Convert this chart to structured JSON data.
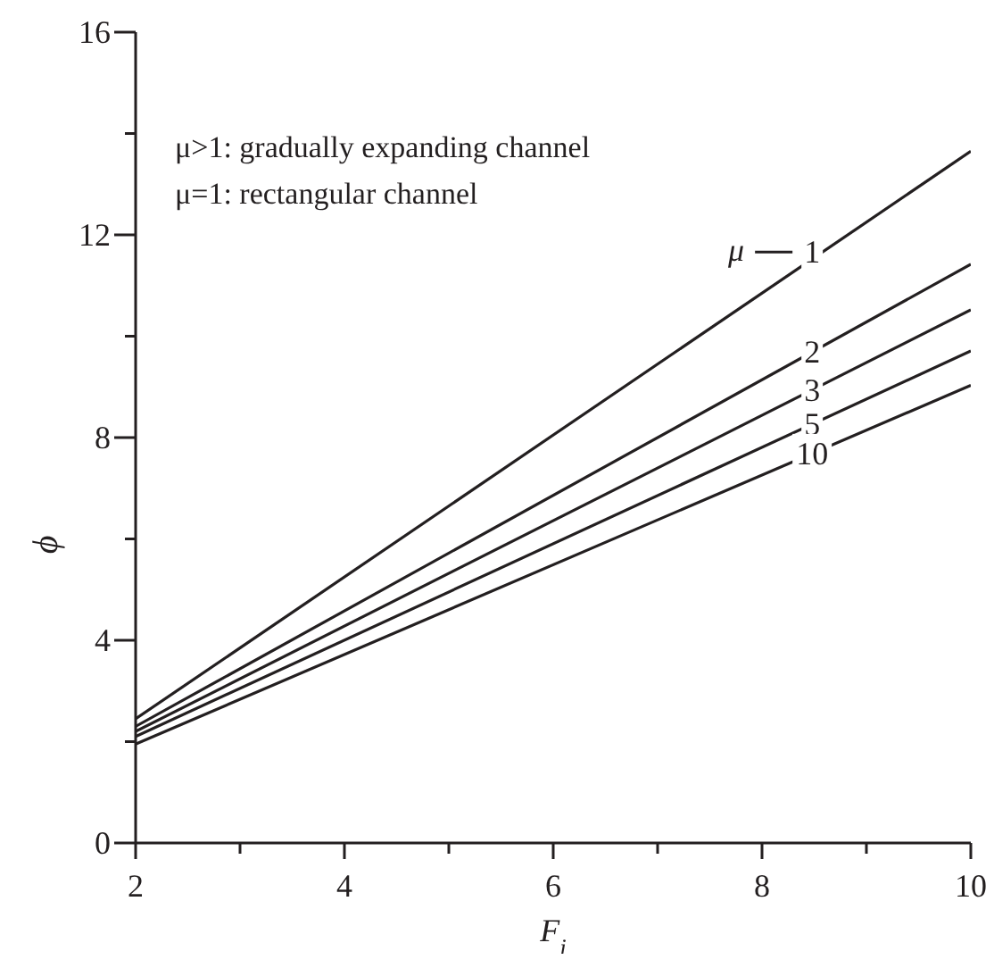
{
  "chart_data": {
    "type": "line",
    "xlabel": "F$_{i}$",
    "ylabel": "ϕ",
    "x": [
      2,
      10
    ],
    "series": [
      {
        "name": "1",
        "color": "#231f20",
        "values": [
          2.45,
          13.65
        ]
      },
      {
        "name": "2",
        "color": "#231f20",
        "values": [
          2.3,
          11.42
        ]
      },
      {
        "name": "3",
        "color": "#231f20",
        "values": [
          2.2,
          10.52
        ]
      },
      {
        "name": "5",
        "color": "#231f20",
        "values": [
          2.1,
          9.71
        ]
      },
      {
        "name": "10",
        "color": "#231f20",
        "values": [
          1.95,
          9.03
        ]
      }
    ],
    "annotations": [
      "μ>1: gradually expanding channel",
      "μ=1: rectangular channel",
      "μ"
    ],
    "xlim": [
      2,
      10
    ],
    "ylim": [
      0,
      16
    ],
    "xticks": [
      2,
      {
        "value": 3,
        "label": null
      },
      4,
      {
        "value": 5,
        "label": null
      },
      6,
      {
        "value": 7,
        "label": null
      },
      8,
      {
        "value": 9,
        "label": null
      },
      10
    ],
    "yticks": [
      0,
      {
        "value": 2,
        "label": null
      },
      4,
      {
        "value": 6,
        "label": null
      },
      8,
      {
        "value": 10,
        "label": null
      },
      12,
      {
        "value": 14,
        "label": null
      },
      16
    ],
    "grid": false,
    "marker": "none",
    "line_style": "solid"
  }
}
